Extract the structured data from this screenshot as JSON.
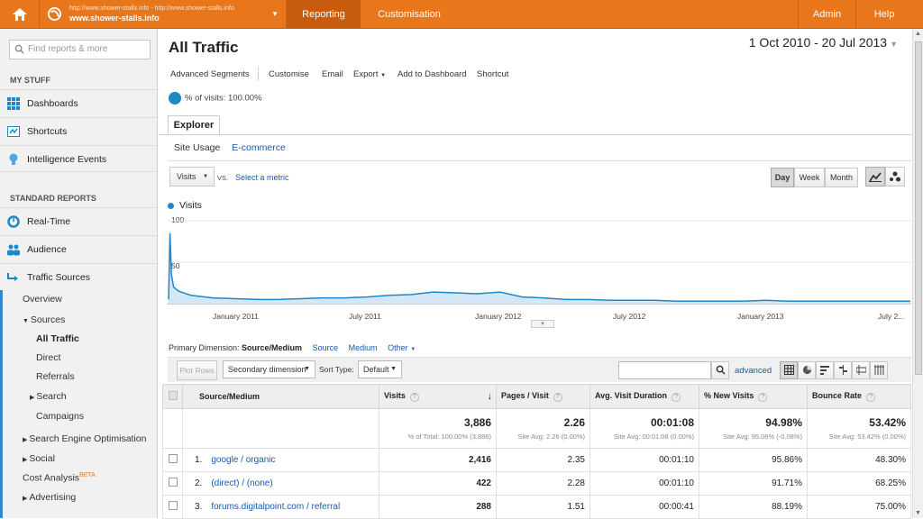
{
  "topbar": {
    "account_line1": "http://www.shower-stalls.info - http://www.shower-stalls.info",
    "account_line2": "www.shower-stalls.info",
    "tabs": [
      {
        "label": "Reporting"
      },
      {
        "label": "Customisation"
      },
      {
        "label": "Admin"
      },
      {
        "label": "Help"
      }
    ]
  },
  "sidebar": {
    "search_placeholder": "Find reports & more",
    "my_stuff": "MY STUFF",
    "my_items": [
      {
        "label": "Dashboards",
        "icon": "grid-icon"
      },
      {
        "label": "Shortcuts",
        "icon": "shortcut-icon"
      },
      {
        "label": "Intelligence Events",
        "icon": "lightbulb-icon"
      }
    ],
    "standard_reports": "STANDARD REPORTS",
    "reports": [
      {
        "label": "Real-Time",
        "icon": "clock-icon"
      },
      {
        "label": "Audience",
        "icon": "people-icon"
      },
      {
        "label": "Traffic Sources",
        "icon": "arrows-icon"
      }
    ],
    "traffic": {
      "overview": "Overview",
      "sources": "Sources",
      "all_traffic": "All Traffic",
      "direct": "Direct",
      "referrals": "Referrals",
      "search": "Search",
      "campaigns": "Campaigns",
      "seo": "Search Engine Optimisation",
      "social": "Social",
      "cost": "Cost Analysis",
      "beta": "BETA",
      "advertising": "Advertising"
    }
  },
  "main": {
    "title": "All Traffic",
    "date_range": "1 Oct 2010 - 20 Jul 2013",
    "toolbar": [
      "Advanced Segments",
      "Customise",
      "Email",
      "Export",
      "Add to Dashboard",
      "Shortcut"
    ],
    "segment": "% of visits: 100.00%",
    "explorer_tab": "Explorer",
    "subtabs": {
      "site_usage": "Site Usage",
      "ecommerce": "E-commerce"
    },
    "metric_select": "Visits",
    "vs": "VS.",
    "select_metric": "Select a metric",
    "granularity": [
      "Day",
      "Week",
      "Month"
    ],
    "primary_dimension": {
      "label": "Primary Dimension:",
      "selected": "Source/Medium",
      "options": [
        "Source",
        "Medium",
        "Other"
      ]
    },
    "controls": {
      "plot_rows": "Plot Rows",
      "secondary": "Secondary dimension",
      "sort_type": "Sort Type:",
      "sort_value": "Default",
      "advanced": "advanced"
    },
    "table": {
      "headers": [
        "Source/Medium",
        "Visits",
        "Pages / Visit",
        "Avg. Visit Duration",
        "% New Visits",
        "Bounce Rate"
      ],
      "totals": [
        {
          "value": "3,886",
          "sub": "% of Total: 100.00% (3,886)"
        },
        {
          "value": "2.26",
          "sub": "Site Avg: 2.26 (0.00%)"
        },
        {
          "value": "00:01:08",
          "sub": "Site Avg: 00:01:08 (0.00%)"
        },
        {
          "value": "94.98%",
          "sub": "Site Avg: 95.06% (-0.08%)"
        },
        {
          "value": "53.42%",
          "sub": "Site Avg: 53.42% (0.00%)"
        }
      ],
      "rows": [
        {
          "idx": "1.",
          "source": "google / organic",
          "visits": "2,416",
          "ppv": "2.35",
          "dur": "00:01:10",
          "new": "95.86%",
          "bounce": "48.30%"
        },
        {
          "idx": "2.",
          "source": "(direct) / (none)",
          "visits": "422",
          "ppv": "2.28",
          "dur": "00:01:10",
          "new": "91.71%",
          "bounce": "68.25%"
        },
        {
          "idx": "3.",
          "source": "forums.digitalpoint.com / referral",
          "visits": "288",
          "ppv": "1.51",
          "dur": "00:00:41",
          "new": "88.19%",
          "bounce": "75.00%"
        }
      ]
    }
  },
  "chart_data": {
    "type": "line",
    "series": [
      {
        "name": "Visits",
        "color": "#1e87c8"
      }
    ],
    "ylim": [
      0,
      100
    ],
    "yticks": [
      "100",
      "50"
    ],
    "x_tick_labels": [
      "January 2011",
      "July 2011",
      "January 2012",
      "July 2012",
      "January 2013",
      "July 2..."
    ],
    "x": [
      "2010-10-01",
      "2010-10-03",
      "2010-10-05",
      "2010-10-08",
      "2010-10-15",
      "2010-11-01",
      "2010-12-01",
      "2011-01-01",
      "2011-02-01",
      "2011-03-01",
      "2011-04-01",
      "2011-05-01",
      "2011-06-01",
      "2011-07-01",
      "2011-08-01",
      "2011-09-01",
      "2011-10-01",
      "2011-11-01",
      "2011-12-01",
      "2012-01-01",
      "2012-02-01",
      "2012-03-01",
      "2012-04-01",
      "2012-05-01",
      "2012-06-01",
      "2012-07-01",
      "2012-08-01",
      "2012-09-01",
      "2012-10-01",
      "2012-11-01",
      "2012-12-01",
      "2013-01-01",
      "2013-02-01",
      "2013-03-01",
      "2013-04-01",
      "2013-05-01",
      "2013-06-01",
      "2013-07-01",
      "2013-07-20"
    ],
    "values": [
      5,
      85,
      35,
      20,
      15,
      10,
      7,
      6,
      5,
      5,
      6,
      7,
      7,
      8,
      10,
      11,
      14,
      13,
      12,
      14,
      8,
      7,
      5,
      5,
      4,
      4,
      4,
      3,
      3,
      3,
      3,
      4,
      3,
      3,
      3,
      3,
      3,
      3,
      3
    ]
  }
}
